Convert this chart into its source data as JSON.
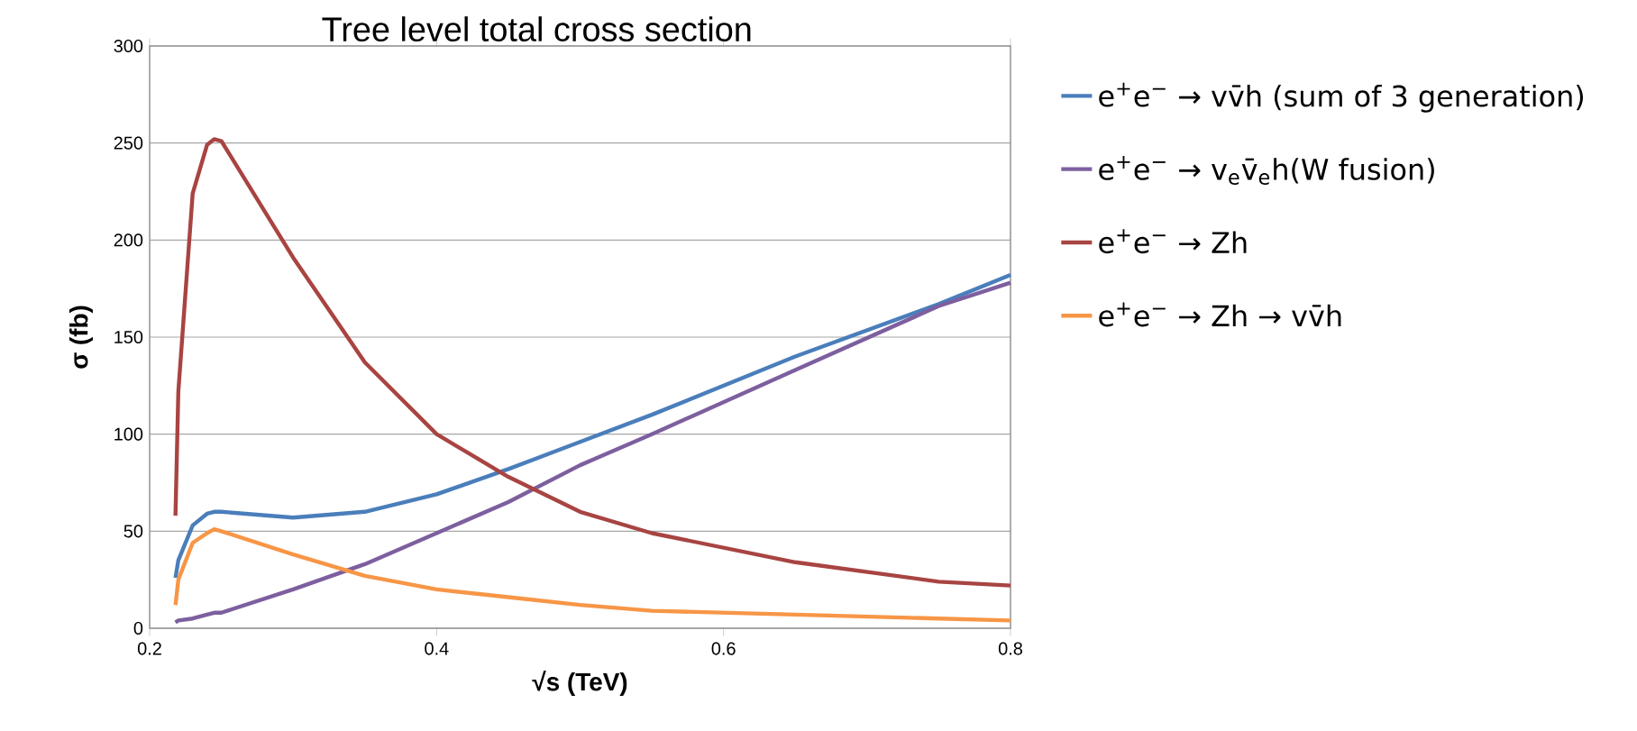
{
  "chart_data": {
    "type": "line",
    "title": "Tree level total cross section",
    "xlabel": "√s  (TeV)",
    "ylabel": "σ (fb)",
    "x": [
      0.218,
      0.22,
      0.23,
      0.24,
      0.245,
      0.25,
      0.3,
      0.35,
      0.4,
      0.45,
      0.5,
      0.55,
      0.65,
      0.75,
      0.8
    ],
    "series": [
      {
        "name": "e$^{+}$e$^{−}$ → vv̄h (sum of 3 generation)",
        "color": "#4a7ebb",
        "values": [
          26,
          35,
          53,
          59,
          60,
          60,
          57,
          60,
          69,
          82,
          96,
          110,
          140,
          167,
          182
        ]
      },
      {
        "name": "e$^{+}$e$^{−}$ → v$_{e}$v̄$_{e}$h(W fusion)",
        "color": "#7d5f9f",
        "values": [
          3,
          4,
          5,
          7,
          8,
          8,
          20,
          33,
          49,
          65,
          84,
          100,
          133,
          166,
          178
        ]
      },
      {
        "name": "e$^{+}$e$^{−}$ → Zh",
        "color": "#a84442",
        "values": [
          58,
          122,
          224,
          249,
          252,
          251,
          191,
          137,
          100,
          78,
          60,
          49,
          34,
          24,
          22
        ]
      },
      {
        "name": "e$^{+}$e$^{−}$ → Zh → vv̄h",
        "color": "#f79646",
        "values": [
          12,
          25,
          44,
          49,
          51,
          50,
          38,
          27,
          20,
          16,
          12,
          9,
          7,
          5,
          4
        ]
      }
    ],
    "xlim": [
      0.2,
      0.8
    ],
    "ylim": [
      0,
      300
    ],
    "xticks": [
      0.2,
      0.4,
      0.6,
      0.8
    ],
    "yticks": [
      0,
      50,
      100,
      150,
      200,
      250,
      300
    ],
    "grid": "y",
    "legend": "right",
    "marker": "none",
    "line_style": "solid"
  }
}
